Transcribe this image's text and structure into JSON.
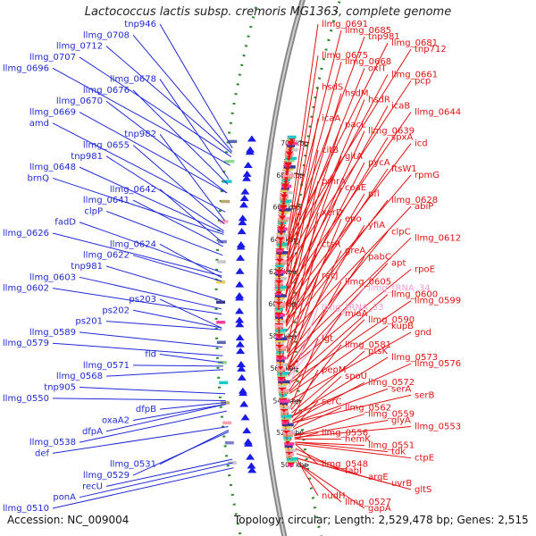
{
  "title": "Lactococcus lactis subsp. cremoris MG1363, complete genome",
  "footer": {
    "accession": "Accession: NC_009004",
    "topology": "Topology: circular; Length: 2,529,478 bp; Genes: 2,515"
  },
  "colors": {
    "left_labels": "#1f2ad6",
    "right_labels": "#e31212",
    "rna_labels": "#f0a0d0",
    "backbone": "#888888",
    "tick_marks": "#2a8a2a",
    "forward_strand": "#1a1ae6",
    "reverse_strand": "#ee1111"
  },
  "ruler": [
    {
      "label": "500 kbp",
      "pos": 500
    },
    {
      "label": "520 kbp",
      "pos": 520
    },
    {
      "label": "540 kbp",
      "pos": 540
    },
    {
      "label": "560 kbp",
      "pos": 560
    },
    {
      "label": "580 kbp",
      "pos": 580
    },
    {
      "label": "600 kbp",
      "pos": 600
    },
    {
      "label": "620 kbp",
      "pos": 620
    },
    {
      "label": "640 kbp",
      "pos": 640
    },
    {
      "label": "660 kbp",
      "pos": 660
    },
    {
      "label": "680 kbp",
      "pos": 680
    },
    {
      "label": "700 kbp",
      "pos": 700
    }
  ],
  "left_labels": [
    {
      "text": "llmg_0510",
      "pos": 505
    },
    {
      "text": "ponA",
      "pos": 508
    },
    {
      "text": "recU",
      "pos": 510
    },
    {
      "text": "llmg_0529",
      "pos": 526
    },
    {
      "text": "llmg_0531",
      "pos": 527
    },
    {
      "text": "def",
      "pos": 529
    },
    {
      "text": "llmg_0538",
      "pos": 538
    },
    {
      "text": "llmg_0550",
      "pos": 544
    },
    {
      "text": "oxaA2",
      "pos": 542
    },
    {
      "text": "dfpA",
      "pos": 542
    },
    {
      "text": "dfpB",
      "pos": 543
    },
    {
      "text": "tnp905",
      "pos": 548
    },
    {
      "text": "llmg_0568",
      "pos": 562
    },
    {
      "text": "llmg_0571",
      "pos": 564
    },
    {
      "text": "fld",
      "pos": 566
    },
    {
      "text": "llmg_0579",
      "pos": 570
    },
    {
      "text": "llmg_0589",
      "pos": 575
    },
    {
      "text": "ps201",
      "pos": 585
    },
    {
      "text": "ps203",
      "pos": 586
    },
    {
      "text": "ps202",
      "pos": 586
    },
    {
      "text": "llmg_0602",
      "pos": 594
    },
    {
      "text": "llmg_0603",
      "pos": 597
    },
    {
      "text": "tnp981",
      "pos": 602
    },
    {
      "text": "llmg_0622",
      "pos": 613
    },
    {
      "text": "llmg_0624",
      "pos": 615
    },
    {
      "text": "llmg_0626",
      "pos": 616
    },
    {
      "text": "fadD",
      "pos": 618
    },
    {
      "text": "clpP",
      "pos": 628
    },
    {
      "text": "llmg_0641",
      "pos": 633
    },
    {
      "text": "llmg_0642",
      "pos": 635
    },
    {
      "text": "brnQ",
      "pos": 640
    },
    {
      "text": "llmg_0648",
      "pos": 641
    },
    {
      "text": "tnp981",
      "pos": 642
    },
    {
      "text": "llmg_0655",
      "pos": 646
    },
    {
      "text": "tnp982",
      "pos": 648
    },
    {
      "text": "amd",
      "pos": 653
    },
    {
      "text": "llmg_0670",
      "pos": 664
    },
    {
      "text": "llmg_0669",
      "pos": 664
    },
    {
      "text": "llmg_0676",
      "pos": 669
    },
    {
      "text": "llmg_0678",
      "pos": 672
    },
    {
      "text": "llmg_0696",
      "pos": 680
    },
    {
      "text": "llmg_0707",
      "pos": 685
    },
    {
      "text": "llmg_0712",
      "pos": 687
    },
    {
      "text": "llmg_0708",
      "pos": 688
    },
    {
      "text": "tnp946",
      "pos": 690
    }
  ],
  "right_labels": [
    {
      "text": "llmg_0527",
      "pos": 502
    },
    {
      "text": "gapA",
      "pos": 502
    },
    {
      "text": "nudH",
      "pos": 504
    },
    {
      "text": "uvrB",
      "pos": 505
    },
    {
      "text": "gltS",
      "pos": 505
    },
    {
      "text": "argE",
      "pos": 508
    },
    {
      "text": "fabI",
      "pos": 511
    },
    {
      "text": "ctpE",
      "pos": 514
    },
    {
      "text": "llmg_0548",
      "pos": 514
    },
    {
      "text": "llmg_0551",
      "pos": 515
    },
    {
      "text": "tdk",
      "pos": 515
    },
    {
      "text": "llmg_0556",
      "pos": 517
    },
    {
      "text": "hemK",
      "pos": 517
    },
    {
      "text": "llmg_0553",
      "pos": 518
    },
    {
      "text": "llmg_0559",
      "pos": 519
    },
    {
      "text": "glyA",
      "pos": 519
    },
    {
      "text": "llmg_0562",
      "pos": 523
    },
    {
      "text": "serC",
      "pos": 524
    },
    {
      "text": "serA",
      "pos": 527
    },
    {
      "text": "serB",
      "pos": 527
    },
    {
      "text": "spoU",
      "pos": 528
    },
    {
      "text": "llmg_0572",
      "pos": 528
    },
    {
      "text": "pepM",
      "pos": 530
    },
    {
      "text": "llmg_0573",
      "pos": 531
    },
    {
      "text": "llmg_0576",
      "pos": 531
    },
    {
      "text": "ptsK",
      "pos": 533
    },
    {
      "text": "llmg_0581",
      "pos": 535
    },
    {
      "text": "lgt",
      "pos": 537
    },
    {
      "text": "gnd",
      "pos": 541
    },
    {
      "text": "kupB",
      "pos": 545
    },
    {
      "text": "llmg_0590",
      "pos": 546
    },
    {
      "text": "miaA",
      "pos": 547
    },
    {
      "text": "llmg_tRNA_33",
      "pos": 549,
      "rna": true
    },
    {
      "text": "llmg_0599",
      "pos": 551
    },
    {
      "text": "llmg_0600",
      "pos": 552
    },
    {
      "text": "llmg_tRNA_34",
      "pos": 555,
      "rna": true
    },
    {
      "text": "llmg_0605",
      "pos": 556
    },
    {
      "text": "recJ",
      "pos": 559
    },
    {
      "text": "apt",
      "pos": 560
    },
    {
      "text": "rpoE",
      "pos": 560
    },
    {
      "text": "pabC",
      "pos": 561
    },
    {
      "text": "greA",
      "pos": 562
    },
    {
      "text": "ctsR",
      "pos": 566
    },
    {
      "text": "llmg_0612",
      "pos": 567
    },
    {
      "text": "clpC",
      "pos": 568
    },
    {
      "text": "yfiA",
      "pos": 570
    },
    {
      "text": "eno",
      "pos": 571
    },
    {
      "text": "xerD",
      "pos": 573
    },
    {
      "text": "abiP",
      "pos": 579
    },
    {
      "text": "llmg_0628",
      "pos": 583
    },
    {
      "text": "pfl",
      "pos": 586
    },
    {
      "text": "coaE",
      "pos": 587
    },
    {
      "text": "pmrA",
      "pos": 588
    },
    {
      "text": "rpmG",
      "pos": 589
    },
    {
      "text": "ftsW1",
      "pos": 590
    },
    {
      "text": "pycA",
      "pos": 593
    },
    {
      "text": "gltA",
      "pos": 595
    },
    {
      "text": "citB",
      "pos": 596
    },
    {
      "text": "icd",
      "pos": 598
    },
    {
      "text": "spxA",
      "pos": 599
    },
    {
      "text": "llmg_0639",
      "pos": 600
    },
    {
      "text": "pacL",
      "pos": 605
    },
    {
      "text": "icaA",
      "pos": 606
    },
    {
      "text": "llmg_0644",
      "pos": 607
    },
    {
      "text": "icaB",
      "pos": 608
    },
    {
      "text": "hsdR",
      "pos": 611
    },
    {
      "text": "hsdM",
      "pos": 618
    },
    {
      "text": "hsdS",
      "pos": 620
    },
    {
      "text": "pcp",
      "pos": 622
    },
    {
      "text": "llmg_0661",
      "pos": 624
    },
    {
      "text": "oxlT",
      "pos": 626
    },
    {
      "text": "llmg_0668",
      "pos": 628
    },
    {
      "text": "llmg_0675",
      "pos": 633
    },
    {
      "text": "tnp712",
      "pos": 635
    },
    {
      "text": "llmg_0681",
      "pos": 636
    },
    {
      "text": "tnp981",
      "pos": 637
    },
    {
      "text": "llmg_0685",
      "pos": 639
    },
    {
      "text": "llmg_0691",
      "pos": 643
    }
  ]
}
